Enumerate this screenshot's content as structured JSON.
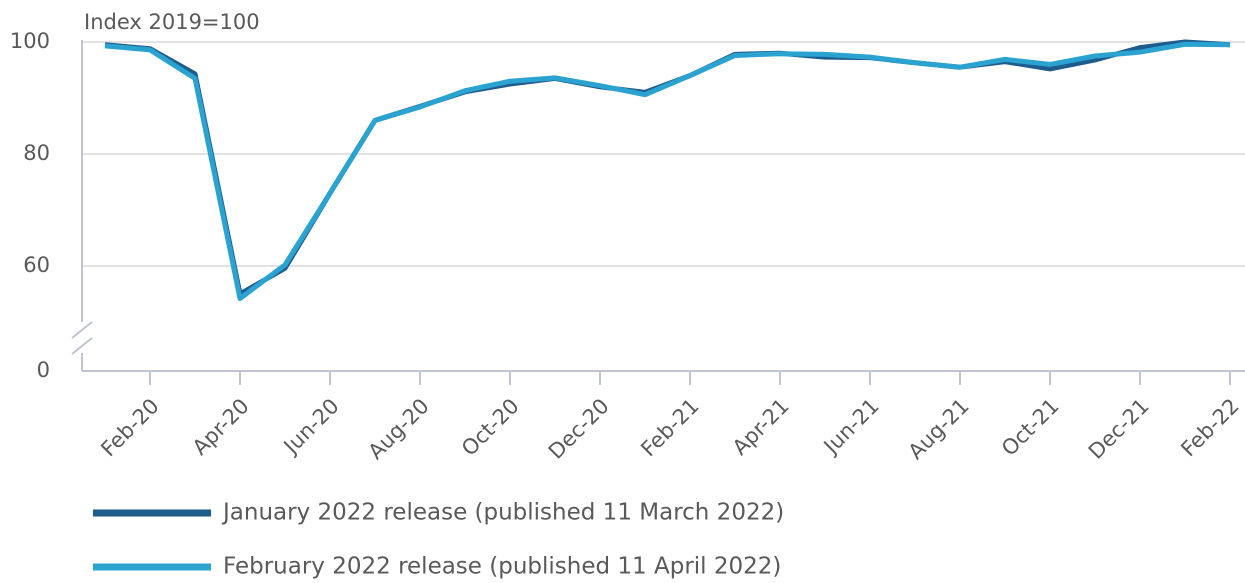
{
  "chart_data": {
    "type": "line",
    "y_axis_label": "Index 2019=100",
    "categories": [
      null,
      "Feb-20",
      null,
      "Apr-20",
      null,
      "Jun-20",
      null,
      "Aug-20",
      null,
      "Oct-20",
      null,
      "Dec-20",
      null,
      "Feb-21",
      null,
      "Apr-21",
      null,
      "Jun-21",
      null,
      "Aug-21",
      null,
      "Oct-21",
      null,
      "Dec-21",
      null,
      "Feb-22"
    ],
    "series": [
      {
        "name": "January 2022 release (published 11 March 2022)",
        "color": "#1f5c8e",
        "values": [
          99.5,
          98.8,
          94.3,
          55,
          59.6,
          73,
          86,
          88.5,
          91.1,
          92.5,
          93.5,
          92,
          91,
          94,
          97.8,
          98,
          97.3,
          97.2,
          96.3,
          95.5,
          96.5,
          95.2,
          96.8,
          99,
          100,
          99.5
        ]
      },
      {
        "name": "February 2022 release (published 11 April 2022)",
        "color": "#2aa3d0",
        "values": [
          99.3,
          98.6,
          93.5,
          54.2,
          60.2,
          73,
          86,
          88.4,
          91.3,
          93,
          93.6,
          92.2,
          90.6,
          94,
          97.6,
          97.9,
          97.8,
          97.3,
          96.3,
          95.5,
          96.9,
          96,
          97.5,
          98.2,
          99.6,
          99.5
        ]
      }
    ],
    "ylim": [
      0,
      100
    ],
    "axis_break": [
      0,
      45
    ],
    "yticks": [
      0,
      60,
      80,
      100
    ],
    "grid": true,
    "legend": "bottom"
  }
}
